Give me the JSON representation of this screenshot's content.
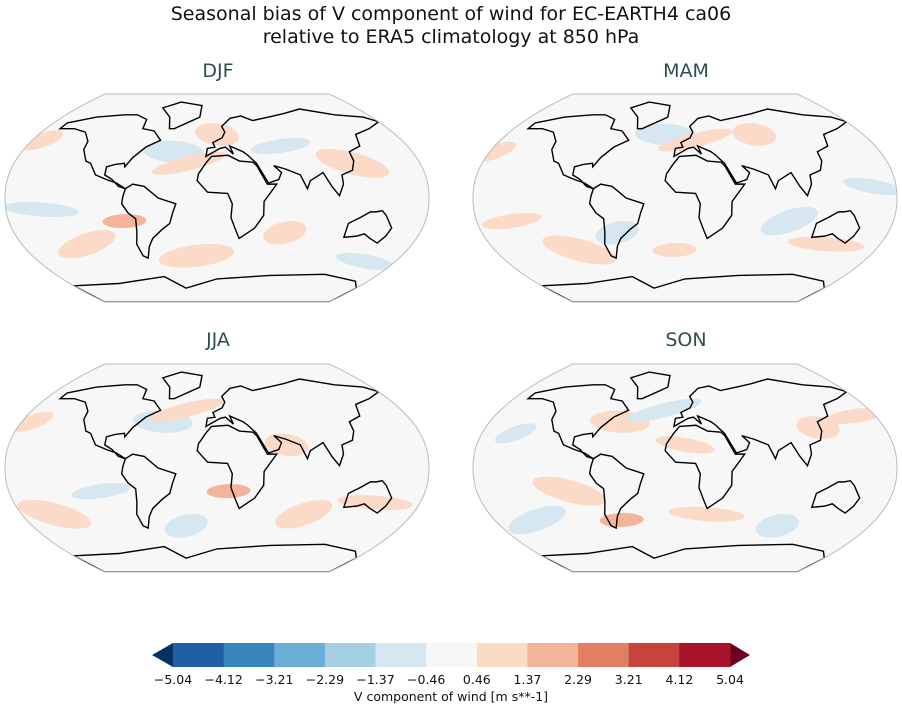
{
  "title_line1": "Seasonal bias of V component of wind for EC-EARTH4 ca06",
  "title_line2": "relative to ERA5 climatology at 850 hPa",
  "panels": [
    {
      "label": "DJF"
    },
    {
      "label": "MAM"
    },
    {
      "label": "JJA"
    },
    {
      "label": "SON"
    }
  ],
  "colorbar": {
    "label": "V component of wind [m s**-1]",
    "ticks": [
      "−5.04",
      "−4.12",
      "−3.21",
      "−2.29",
      "−1.37",
      "−0.46",
      "0.46",
      "1.37",
      "2.29",
      "3.21",
      "4.12",
      "5.04"
    ],
    "colors": [
      "#1f5fa3",
      "#3a85bd",
      "#6aaed5",
      "#a6cfe4",
      "#d6e7f1",
      "#f7f7f7",
      "#fbdac8",
      "#f4b49a",
      "#e27e64",
      "#c7443e",
      "#a71429"
    ],
    "under_color": "#073263",
    "over_color": "#6b0020",
    "extend": "both"
  }
}
